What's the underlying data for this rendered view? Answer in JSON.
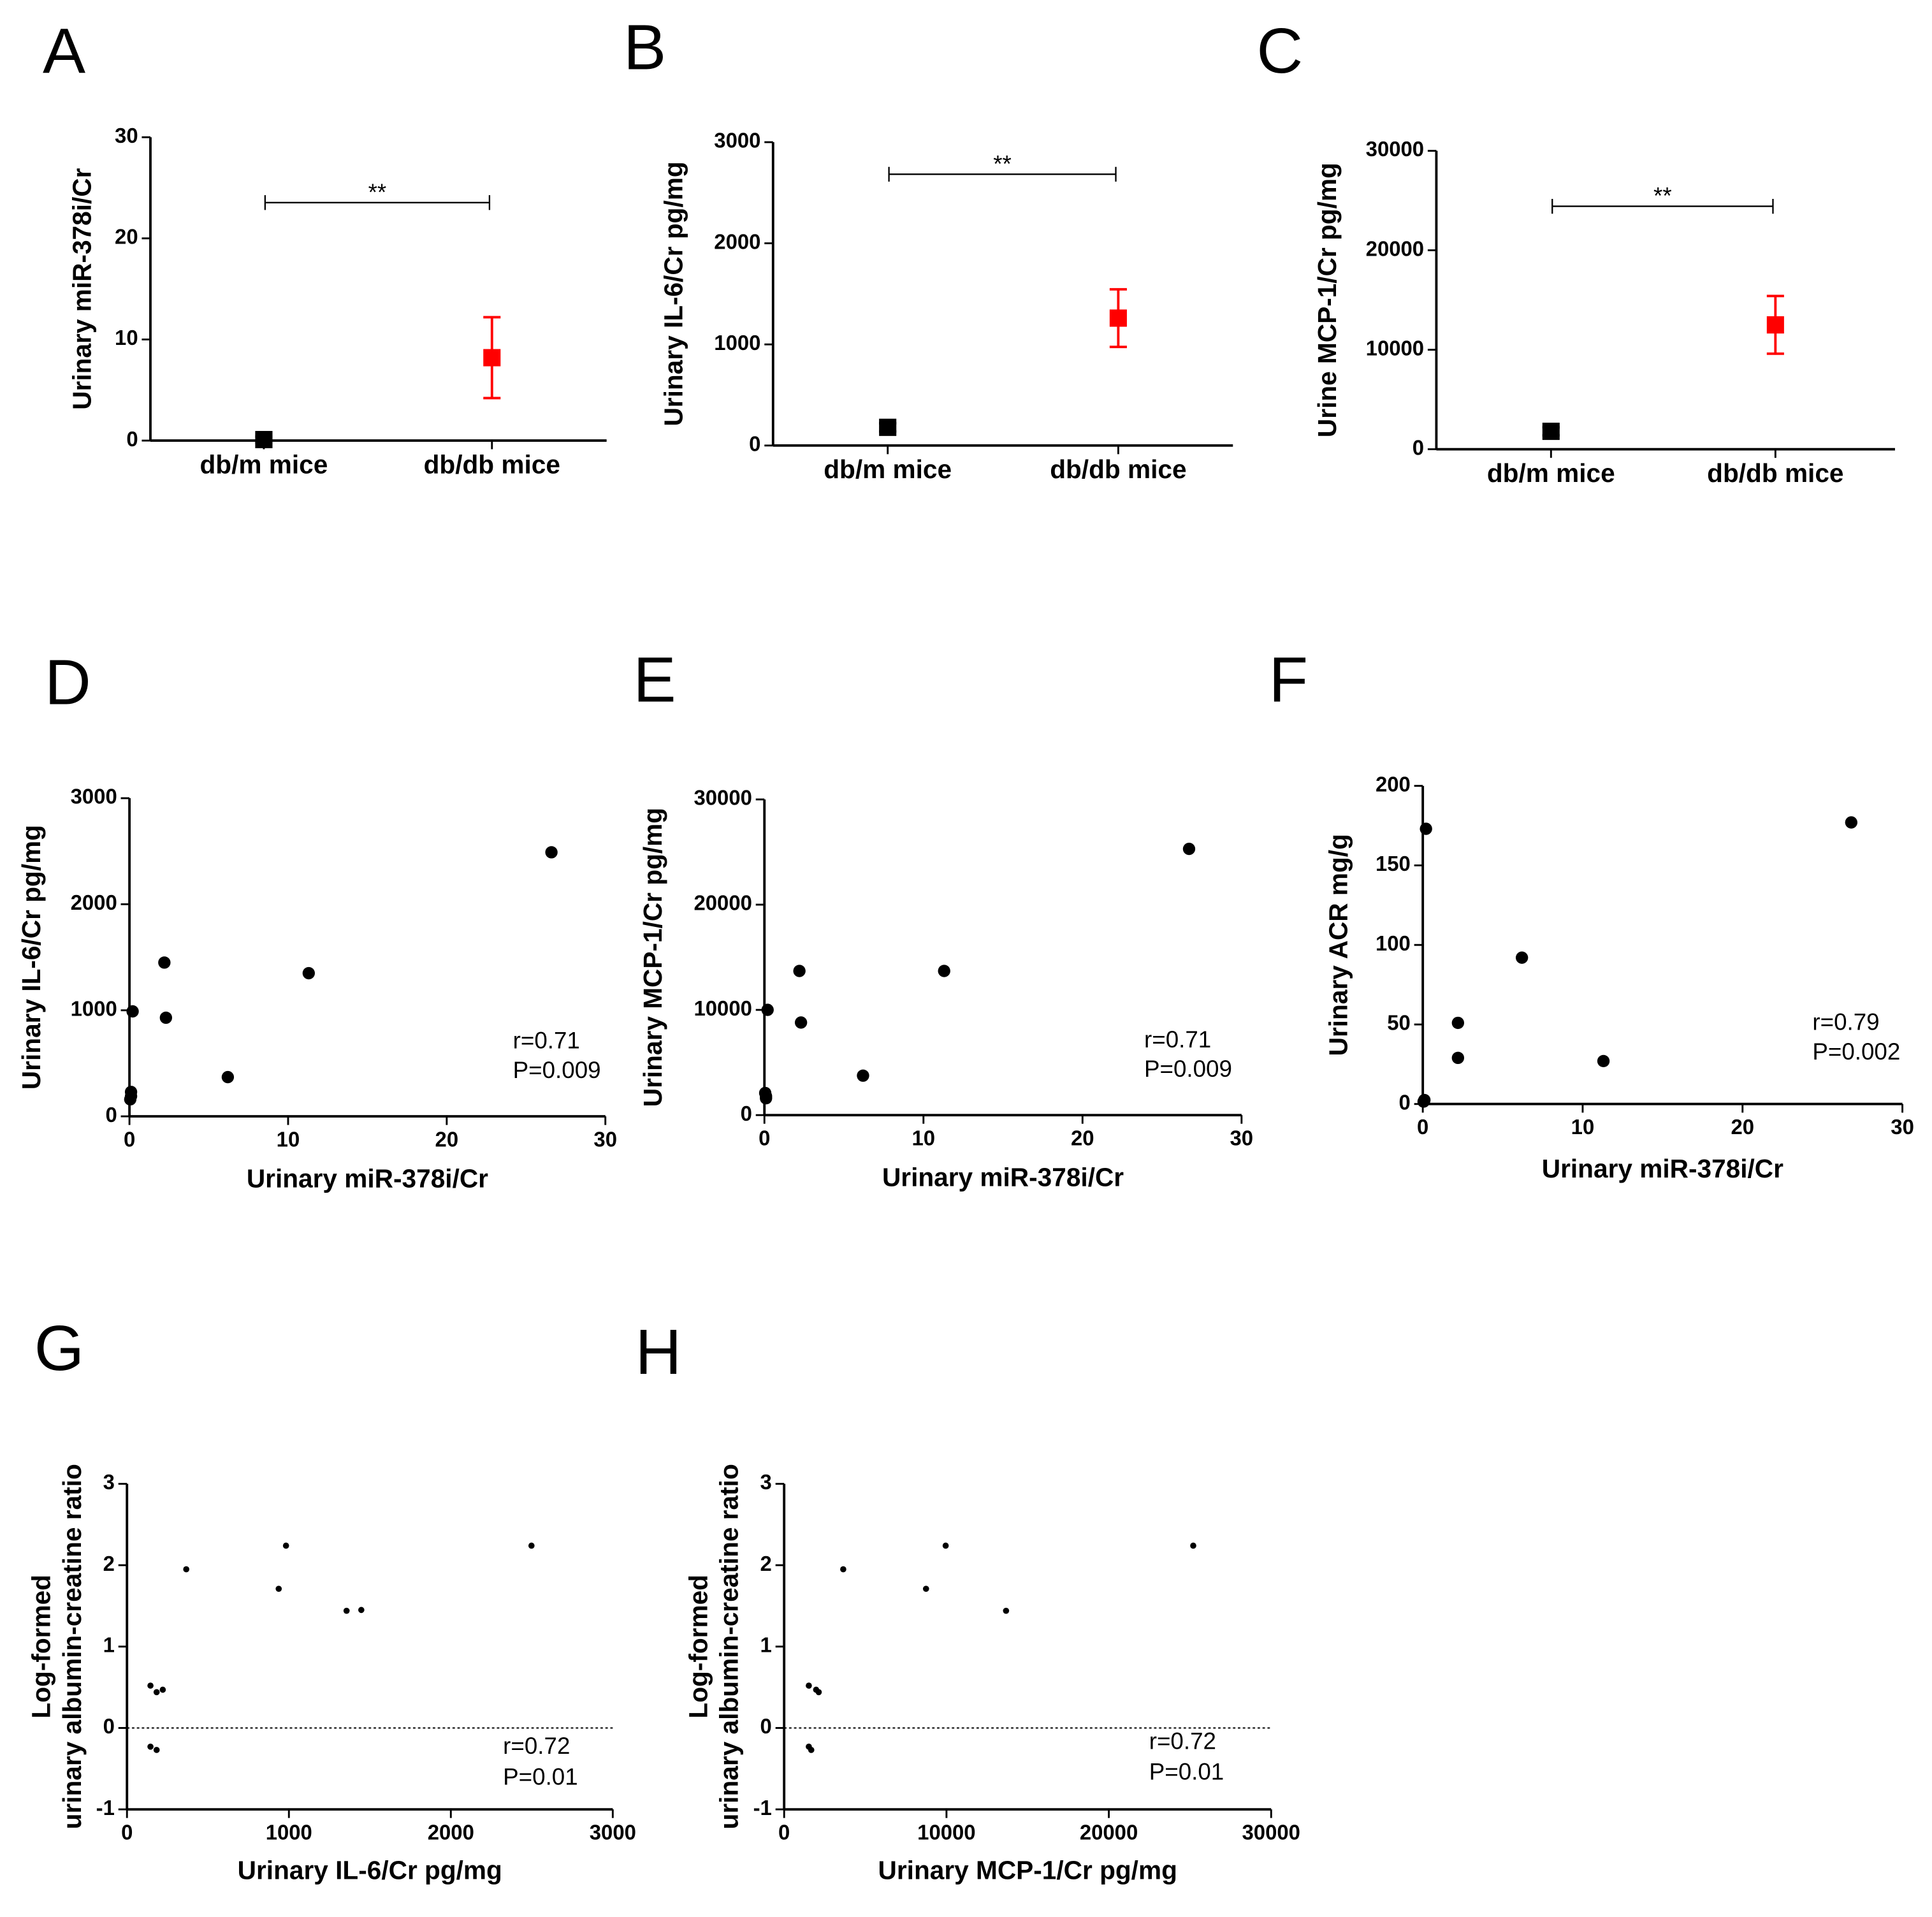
{
  "chart_data": [
    {
      "type": "errorbar",
      "panel": "A",
      "ylabel": "Urinary miR-378i/Cr",
      "categories": [
        "db/m mice",
        "db/db mice"
      ],
      "values": [
        0.1,
        8.2
      ],
      "errors": [
        0.3,
        4.0
      ],
      "colors": [
        "#000000",
        "#ff0000"
      ],
      "ylim": [
        0,
        30
      ],
      "yticks": [
        0,
        10,
        20,
        30
      ],
      "annotation": "**"
    },
    {
      "type": "errorbar",
      "panel": "B",
      "ylabel": "Urinary IL-6/Cr pg/mg",
      "categories": [
        "db/m mice",
        "db/db mice"
      ],
      "values": [
        180,
        1260
      ],
      "errors": [
        40,
        285
      ],
      "colors": [
        "#000000",
        "#ff0000"
      ],
      "ylim": [
        0,
        3000
      ],
      "yticks": [
        0,
        1000,
        2000,
        3000
      ],
      "annotation": "**"
    },
    {
      "type": "errorbar",
      "panel": "C",
      "ylabel": "Urine MCP-1/Cr pg/mg",
      "categories": [
        "db/m mice",
        "db/db mice"
      ],
      "values": [
        1800,
        12500
      ],
      "errors": [
        400,
        2900
      ],
      "colors": [
        "#000000",
        "#ff0000"
      ],
      "ylim": [
        0,
        30000
      ],
      "yticks": [
        0,
        10000,
        20000,
        30000
      ],
      "annotation": "**"
    },
    {
      "type": "scatter",
      "panel": "D",
      "xlabel": "Urinary miR-378i/Cr",
      "ylabel": "Urinary IL-6/Cr pg/mg",
      "x": [
        0.1,
        0.05,
        0.1,
        0.2,
        2.2,
        2.3,
        6.2,
        11.3,
        26.6
      ],
      "y": [
        230,
        160,
        190,
        990,
        1450,
        930,
        370,
        1350,
        2490
      ],
      "color": "#000000",
      "xlim": [
        0,
        30
      ],
      "xticks": [
        0,
        10,
        20,
        30
      ],
      "ylim": [
        0,
        3000
      ],
      "yticks": [
        0,
        1000,
        2000,
        3000
      ],
      "annotations": [
        "r=0.71",
        "P=0.009"
      ]
    },
    {
      "type": "scatter",
      "panel": "E",
      "xlabel": "Urinary miR-378i/Cr",
      "ylabel": "Urinary MCP-1/Cr pg/mg",
      "x": [
        0.05,
        0.1,
        0.1,
        0.2,
        2.2,
        2.3,
        6.2,
        11.3,
        26.7
      ],
      "y": [
        2100,
        1600,
        1800,
        10000,
        13700,
        8800,
        3750,
        13700,
        25300
      ],
      "color": "#000000",
      "xlim": [
        0,
        30
      ],
      "xticks": [
        0,
        10,
        20,
        30
      ],
      "ylim": [
        0,
        30000
      ],
      "yticks": [
        0,
        10000,
        20000,
        30000
      ],
      "annotations": [
        "r=0.71",
        "P=0.009"
      ]
    },
    {
      "type": "scatter",
      "panel": "F",
      "xlabel": "Urinary miR-378i/Cr",
      "ylabel": "Urinary ACR mg/g",
      "x": [
        0.05,
        0.1,
        0.2,
        2.2,
        2.2,
        6.2,
        11.3,
        26.8
      ],
      "y": [
        1.5,
        2.5,
        173,
        51,
        29,
        92,
        27,
        177
      ],
      "color": "#000000",
      "xlim": [
        0,
        30
      ],
      "xticks": [
        0,
        10,
        20,
        30
      ],
      "ylim": [
        0,
        200
      ],
      "yticks": [
        0,
        50,
        100,
        150,
        200
      ],
      "annotations": [
        "r=0.79",
        "P=0.002"
      ]
    },
    {
      "type": "scatter",
      "panel": "G",
      "xlabel": "Urinary IL-6/Cr pg/mg",
      "ylabel": [
        "Log-formed",
        "urinary albumin-creatine ratio"
      ],
      "x": [
        145,
        183,
        221,
        145,
        183,
        366,
        937,
        982,
        1356,
        1447,
        2498
      ],
      "y": [
        0.52,
        0.44,
        0.47,
        -0.23,
        -0.27,
        1.95,
        1.71,
        2.24,
        1.44,
        1.45,
        2.24
      ],
      "color": "#000000",
      "xlim": [
        0,
        3000
      ],
      "xticks": [
        0,
        1000,
        2000,
        3000
      ],
      "ylim": [
        -1,
        3
      ],
      "yticks": [
        -1,
        0,
        1,
        2,
        3
      ],
      "hline": 0,
      "annotations": [
        "r=0.72",
        "P=0.01"
      ]
    },
    {
      "type": "scatter",
      "panel": "H",
      "xlabel": "Urinary MCP-1/Cr pg/mg",
      "ylabel": [
        "Log-formed",
        "urinary albumin-creatine ratio"
      ],
      "x": [
        1520,
        1970,
        2130,
        1520,
        1670,
        3640,
        8740,
        9950,
        13670,
        25200
      ],
      "y": [
        0.52,
        0.47,
        0.44,
        -0.23,
        -0.27,
        1.95,
        1.71,
        2.24,
        1.44,
        2.24
      ],
      "color": "#000000",
      "xlim": [
        0,
        30000
      ],
      "xticks": [
        0,
        10000,
        20000,
        30000
      ],
      "ylim": [
        -1,
        3
      ],
      "yticks": [
        -1,
        0,
        1,
        2,
        3
      ],
      "hline": 0,
      "annotations": [
        "r=0.72",
        "P=0.01"
      ]
    }
  ]
}
